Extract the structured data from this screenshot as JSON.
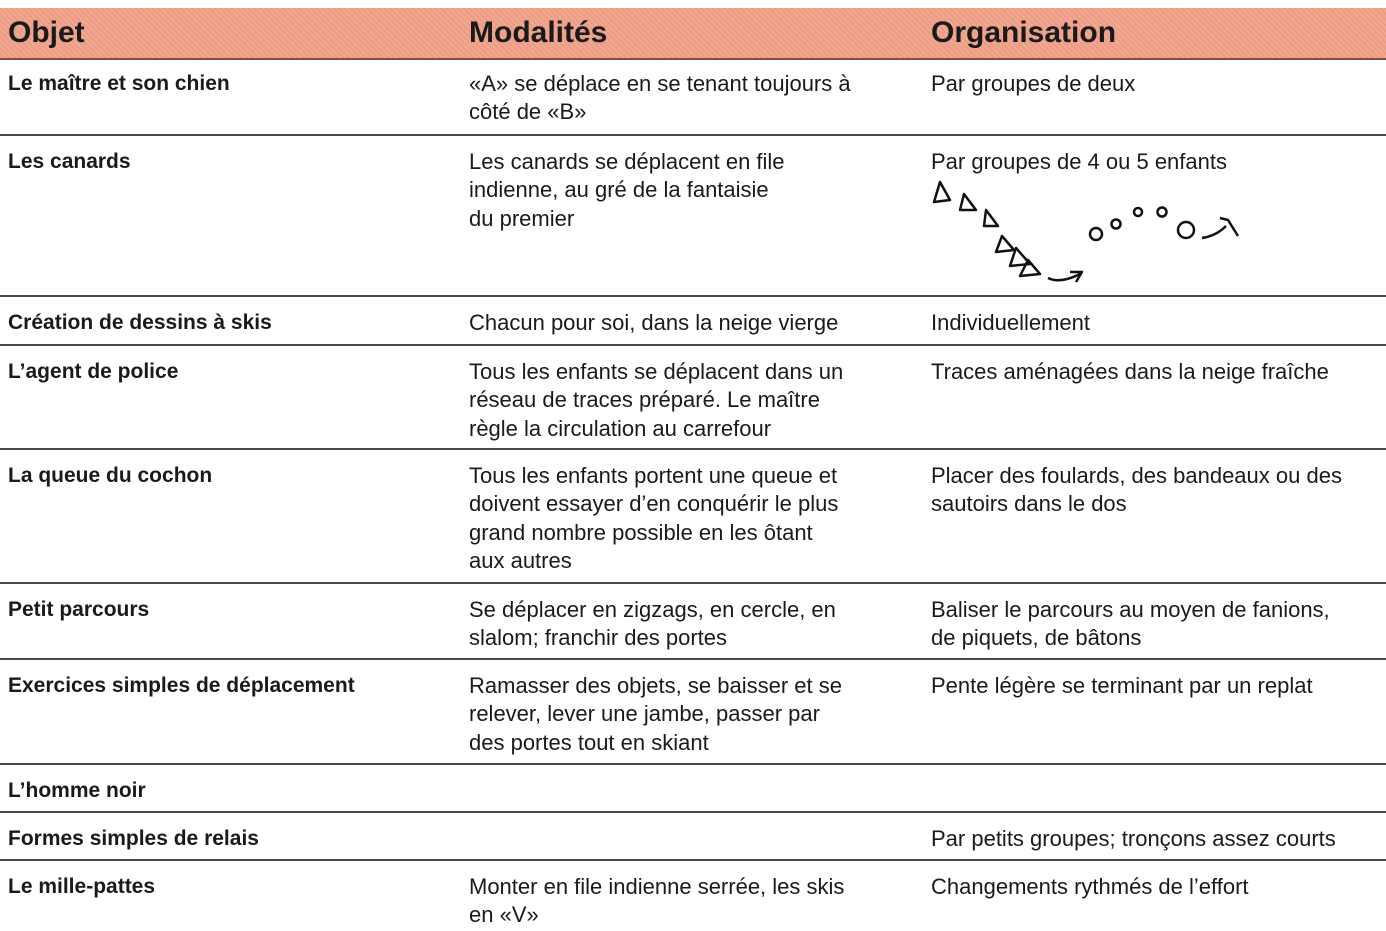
{
  "header": {
    "columns": [
      "Objet",
      "Modalités",
      "Organisation"
    ]
  },
  "table": {
    "rows": [
      [
        [
          "Le maître et son chien"
        ],
        [
          "«A» se déplace en se tenant toujours à",
          "côté de «B»"
        ],
        [
          "Par groupes de deux"
        ]
      ],
      [
        [
          "Les canards"
        ],
        [
          "Les canards se déplacent en file",
          "indienne, au gré de la fantaisie",
          "du premier"
        ],
        [
          "Par groupes de 4 ou 5 enfants"
        ]
      ],
      [
        [
          "Création de dessins à skis"
        ],
        [
          "Chacun pour soi, dans la neige vierge"
        ],
        [
          "Individuellement"
        ]
      ],
      [
        [
          "L’agent de police"
        ],
        [
          "Tous les enfants se déplacent dans un",
          "réseau de traces préparé. Le maître",
          "règle la circulation au carrefour"
        ],
        [
          "Traces aménagées dans la neige fraîche"
        ]
      ],
      [
        [
          "La queue du cochon"
        ],
        [
          "Tous les enfants portent une queue et",
          "doivent essayer d’en conquérir le plus",
          "grand nombre possible en les ôtant",
          "aux autres"
        ],
        [
          "Placer des foulards, des bandeaux ou des",
          "sautoirs dans le dos"
        ]
      ],
      [
        [
          "Petit parcours"
        ],
        [
          "Se déplacer en zigzags, en cercle, en",
          "slalom; franchir des portes"
        ],
        [
          "Baliser le parcours au moyen de fanions,",
          "de piquets, de bâtons"
        ]
      ],
      [
        [
          "Exercices simples de déplacement"
        ],
        [
          "Ramasser des objets, se baisser et se",
          "relever, lever une jambe, passer par",
          "des portes tout en skiant"
        ],
        [
          "Pente légère se terminant par un replat"
        ]
      ],
      [
        [
          "L’homme noir"
        ],
        [],
        []
      ],
      [
        [
          "Formes simples de relais"
        ],
        [],
        [
          "Par petits groupes; tronçons assez courts"
        ]
      ],
      [
        [
          "Le mille-pattes"
        ],
        [
          "Monter en file indienne serrée, les skis",
          "en «V»"
        ],
        [
          "Changements rythmés de l’effort"
        ]
      ]
    ]
  }
}
